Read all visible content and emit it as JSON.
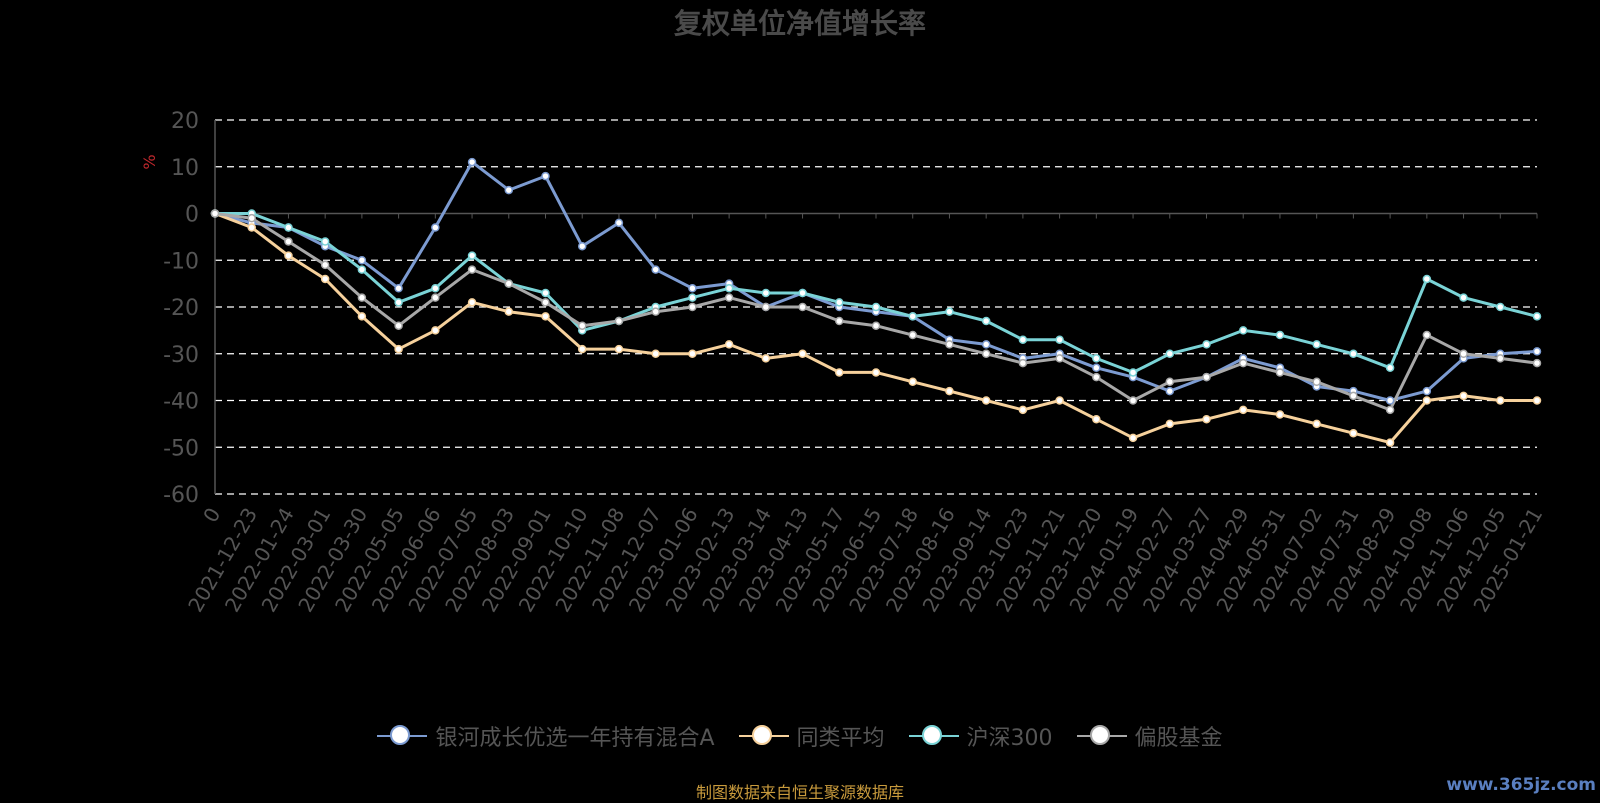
{
  "title": "复权单位净值增长率",
  "source_note": "制图数据来自恒生聚源数据库",
  "watermark": "www.365jz.com",
  "legend": [
    {
      "name": "银河成长优选一年持有混合A",
      "color": "#7c9bd1"
    },
    {
      "name": "同类平均",
      "color": "#f6d19c"
    },
    {
      "name": "沪深300",
      "color": "#7ad3d6"
    },
    {
      "name": "偏股基金",
      "color": "#a8a8a8"
    }
  ],
  "chart_data": {
    "type": "line",
    "title": "复权单位净值增长率",
    "ylabel": "%",
    "ylim": [
      -60,
      20
    ],
    "yticks": [
      20,
      10,
      0,
      -10,
      -20,
      -30,
      -40,
      -50,
      -60
    ],
    "grid": true,
    "legend_position": "bottom",
    "x_tick_labels": [
      "0",
      "2021-12-23",
      "2022-01-24",
      "2022-03-01",
      "2022-03-30",
      "2022-05-05",
      "2022-06-06",
      "2022-07-05",
      "2022-08-03",
      "2022-09-01",
      "2022-10-10",
      "2022-11-08",
      "2022-12-07",
      "2023-01-06",
      "2023-02-13",
      "2023-03-14",
      "2023-04-13",
      "2023-05-17",
      "2023-06-15",
      "2023-07-18",
      "2023-08-16",
      "2023-09-14",
      "2023-10-23",
      "2023-11-21",
      "2023-12-20",
      "2024-01-19",
      "2024-02-27",
      "2024-03-27",
      "2024-04-29",
      "2024-05-31",
      "2024-07-02",
      "2024-07-31",
      "2024-08-29",
      "2024-10-08",
      "2024-11-06",
      "2024-12-05",
      "2025-01-21"
    ],
    "series": [
      {
        "name": "银河成长优选一年持有混合A",
        "color": "#7c9bd1",
        "values": [
          0,
          -2,
          -3,
          -7,
          -10,
          -16,
          -3,
          11,
          5,
          8,
          -7,
          -2,
          -12,
          -16,
          -15,
          -20,
          -17,
          -20,
          -21,
          -22,
          -27,
          -28,
          -31,
          -30,
          -33,
          -35,
          -38,
          -35,
          -31,
          -33,
          -37,
          -38,
          -40,
          -38,
          -31,
          -30,
          -29.5
        ]
      },
      {
        "name": "同类平均",
        "color": "#f6d19c",
        "values": [
          0,
          -3,
          -9,
          -14,
          -22,
          -29,
          -25,
          -19,
          -21,
          -22,
          -29,
          -29,
          -30,
          -30,
          -28,
          -31,
          -30,
          -34,
          -34,
          -36,
          -38,
          -40,
          -42,
          -40,
          -44,
          -48,
          -45,
          -44,
          -42,
          -43,
          -45,
          -47,
          -49,
          -40,
          -39,
          -40,
          -40
        ]
      },
      {
        "name": "沪深300",
        "color": "#7ad3d6",
        "values": [
          0,
          0,
          -3,
          -6,
          -12,
          -19,
          -16,
          -9,
          -15,
          -17,
          -25,
          -23,
          -20,
          -18,
          -16,
          -17,
          -17,
          -19,
          -20,
          -22,
          -21,
          -23,
          -27,
          -27,
          -31,
          -34,
          -30,
          -28,
          -25,
          -26,
          -28,
          -30,
          -33,
          -14,
          -18,
          -20,
          -22
        ]
      },
      {
        "name": "偏股基金",
        "color": "#a8a8a8",
        "values": [
          0,
          -1,
          -6,
          -11,
          -18,
          -24,
          -18,
          -12,
          -15,
          -19,
          -24,
          -23,
          -21,
          -20,
          -18,
          -20,
          -20,
          -23,
          -24,
          -26,
          -28,
          -30,
          -32,
          -31,
          -35,
          -40,
          -36,
          -35,
          -32,
          -34,
          -36,
          -39,
          -42,
          -26,
          -30,
          -31,
          -32
        ]
      }
    ]
  }
}
